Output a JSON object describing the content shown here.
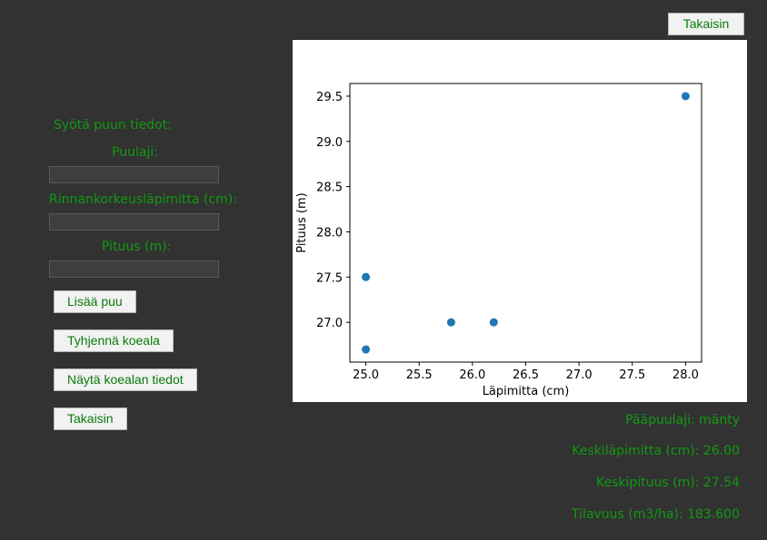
{
  "top_back_button": "Takaisin",
  "form": {
    "heading": "Syötä puun tiedot:",
    "species_label": "Puulaji:",
    "species_value": "",
    "diameter_label": "Rinnankorkeusläpimitta (cm):",
    "diameter_value": "",
    "height_label": "Pituus (m):",
    "height_value": ""
  },
  "buttons": {
    "add_tree": "Lisää puu",
    "clear_plot": "Tyhjennä koeala",
    "show_plot_info": "Näytä koealan tiedot",
    "back": "Takaisin"
  },
  "stats": {
    "main_species": "Pääpuulaji: mänty",
    "mean_diameter": "Keskiläpimitta (cm): 26.00",
    "mean_height": "Keskipituus (m): 27.54",
    "volume": "Tilavuus (m3/ha): 183.600"
  },
  "colors": {
    "accent": "#119911",
    "point": "#1f77b4"
  },
  "chart_data": {
    "type": "scatter",
    "title": "",
    "xlabel": "Läpimitta (cm)",
    "ylabel": "Pituus (m)",
    "xlim": [
      24.85,
      28.15
    ],
    "ylim": [
      26.56,
      29.64
    ],
    "xticks": [
      25.0,
      25.5,
      26.0,
      26.5,
      27.0,
      27.5,
      28.0
    ],
    "yticks": [
      27.0,
      27.5,
      28.0,
      28.5,
      29.0,
      29.5
    ],
    "xtick_labels": [
      "25.0",
      "25.5",
      "26.0",
      "26.5",
      "27.0",
      "27.5",
      "28.0"
    ],
    "ytick_labels": [
      "27.0",
      "27.5",
      "28.0",
      "28.5",
      "29.0",
      "29.5"
    ],
    "x": [
      25.0,
      25.0,
      25.8,
      26.2,
      28.0
    ],
    "y": [
      27.5,
      26.7,
      27.0,
      27.0,
      29.5
    ],
    "grid": false
  }
}
